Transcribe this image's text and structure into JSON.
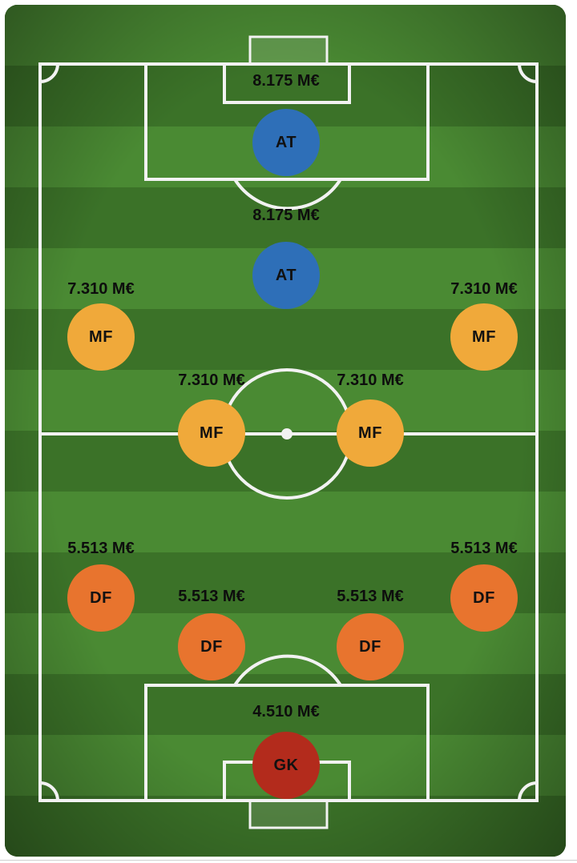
{
  "colors": {
    "attacker": "#2e6fb8",
    "midfielder": "#f0a93a",
    "defender": "#e8742e",
    "goalkeeper": "#b32b1c",
    "grass_light": "#4a8a33",
    "grass_dark": "#3b7228",
    "lines": "#f2f2f2"
  },
  "players": [
    {
      "role": "AT",
      "price": "8.175 M€",
      "type": "attacker"
    },
    {
      "role": "AT",
      "price": "8.175 M€",
      "type": "attacker"
    },
    {
      "role": "MF",
      "price": "7.310 M€",
      "type": "midfielder"
    },
    {
      "role": "MF",
      "price": "7.310 M€",
      "type": "midfielder"
    },
    {
      "role": "MF",
      "price": "7.310 M€",
      "type": "midfielder"
    },
    {
      "role": "MF",
      "price": "7.310 M€",
      "type": "midfielder"
    },
    {
      "role": "DF",
      "price": "5.513 M€",
      "type": "defender"
    },
    {
      "role": "DF",
      "price": "5.513 M€",
      "type": "defender"
    },
    {
      "role": "DF",
      "price": "5.513 M€",
      "type": "defender"
    },
    {
      "role": "DF",
      "price": "5.513 M€",
      "type": "defender"
    },
    {
      "role": "GK",
      "price": "4.510 M€",
      "type": "goalkeeper"
    }
  ]
}
